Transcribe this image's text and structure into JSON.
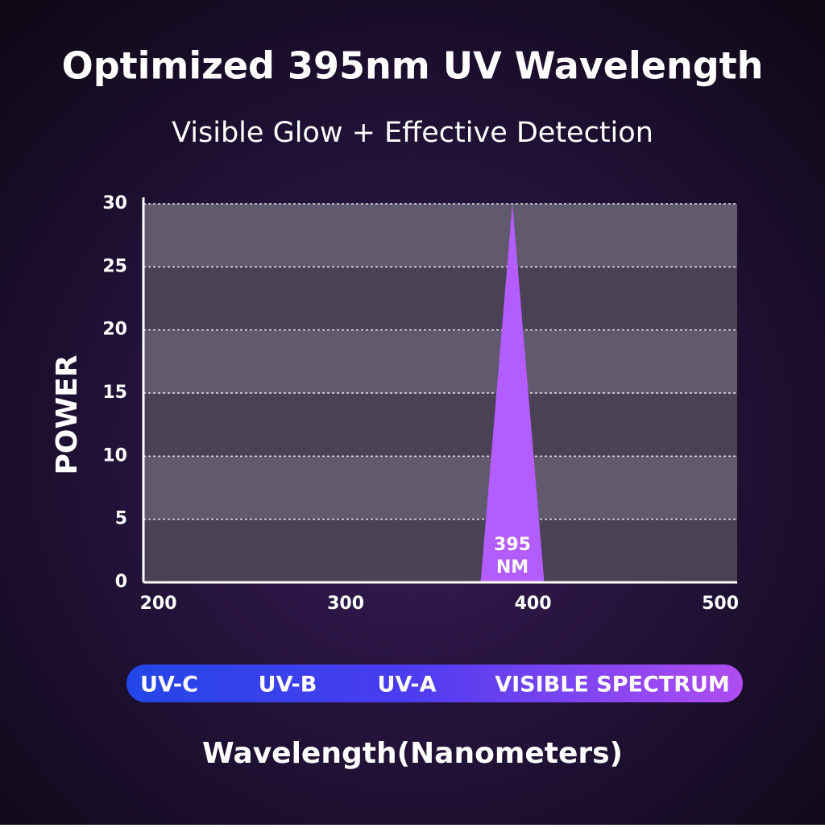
{
  "chart_data": {
    "type": "area",
    "title": "Optimized 395nm UV Wavelength",
    "subtitle": "Visible Glow + Effective Detection",
    "y_label": "POWER",
    "x_label": "Wavelength(Nanometers)",
    "x": [
      372,
      389,
      406
    ],
    "values": [
      0,
      30,
      0
    ],
    "color": "#b35cff",
    "xlim": [
      192,
      509
    ],
    "ylim": [
      0,
      30
    ],
    "xticks": [
      200,
      300,
      400,
      500
    ],
    "yticks": [
      0,
      5,
      10,
      15,
      20,
      25,
      30
    ],
    "grid": true,
    "annotation": [
      "395",
      "NM"
    ],
    "spectrum_bands": [
      "UV-C",
      "UV-B",
      "UV-A",
      "VISIBLE SPECTRUM"
    ]
  }
}
